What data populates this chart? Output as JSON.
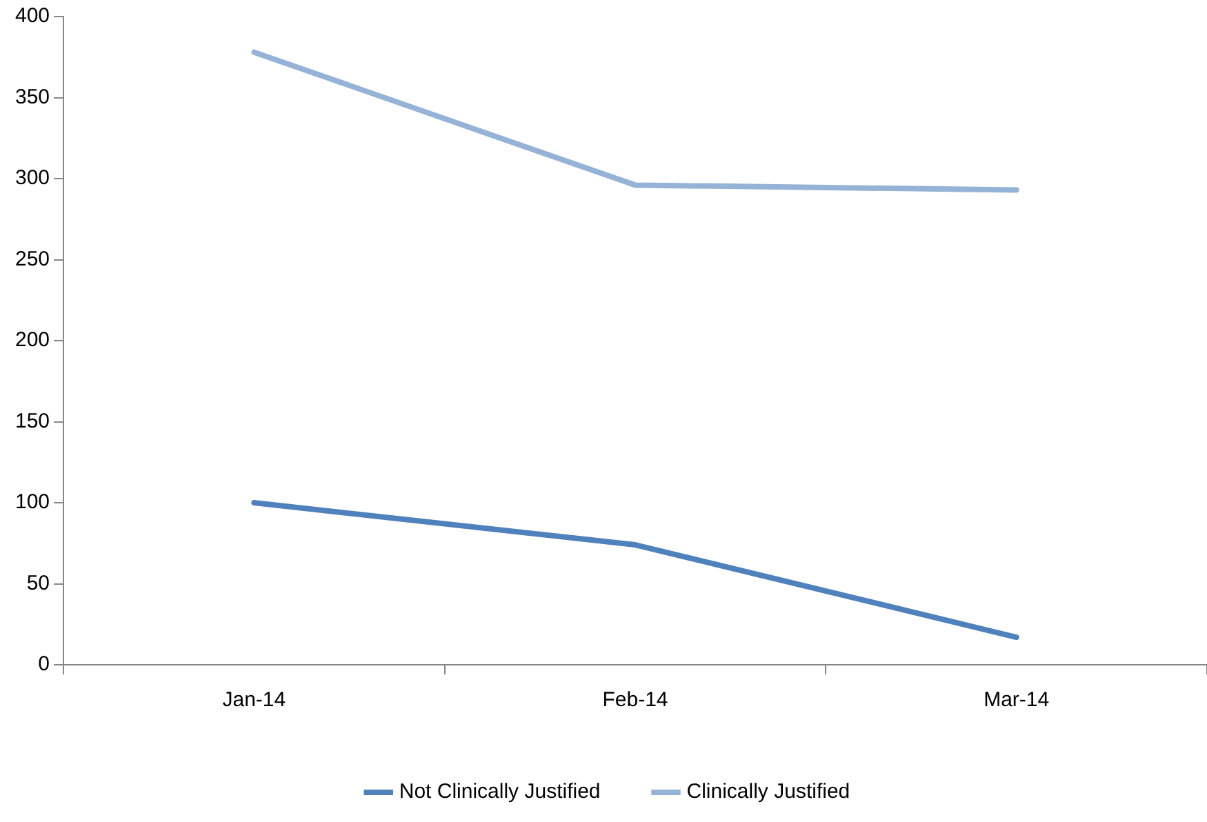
{
  "chart_data": {
    "type": "line",
    "categories": [
      "Jan-14",
      "Feb-14",
      "Mar-14"
    ],
    "series": [
      {
        "name": "Not Clinically Justified",
        "color": "#4f81bd",
        "values": [
          100,
          74,
          17
        ]
      },
      {
        "name": "Clinically Justified",
        "color": "#95b3d7",
        "values": [
          378,
          296,
          293
        ]
      }
    ],
    "ylim": [
      0,
      400
    ],
    "yticks": [
      0,
      50,
      100,
      150,
      200,
      250,
      300,
      350,
      400
    ],
    "grid": false,
    "legend": "bottom",
    "marker": "none",
    "line_style": "solid"
  }
}
